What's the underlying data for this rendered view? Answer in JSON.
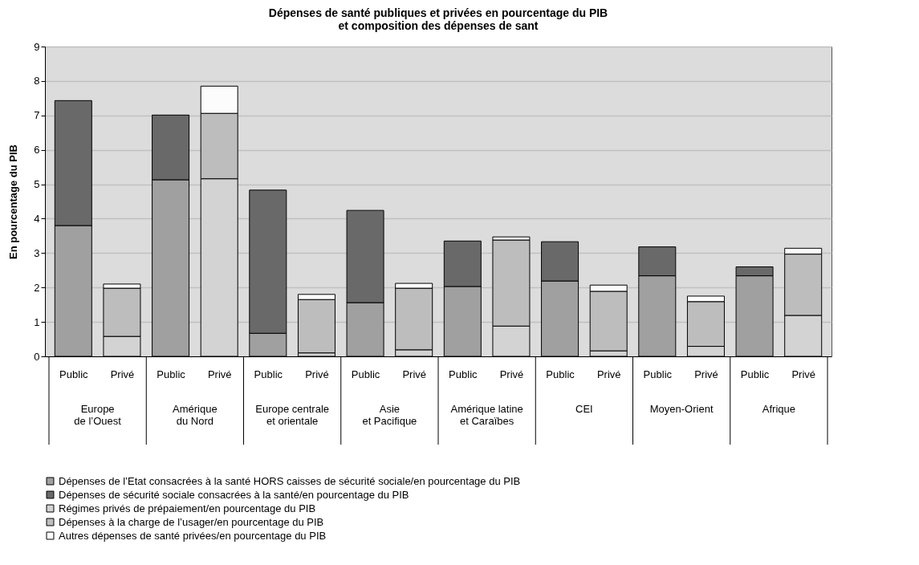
{
  "chart_data": {
    "type": "bar",
    "stacked": true,
    "title": "Dépenses de santé publiques et privées en pourcentage du PIB\net composition des dépenses de sant",
    "ylabel": "En pourcentage du PIB",
    "categories": [
      "Public",
      "Privé",
      "Public",
      "Privé",
      "Public",
      "Privé",
      "Public",
      "Privé",
      "Public",
      "Privé",
      "Public",
      "Privé",
      "Public",
      "Privé",
      "Public",
      "Privé"
    ],
    "annotations": [
      "Europe\nde l’Ouest",
      "Amérique\ndu Nord",
      "Europe centrale\net orientale",
      "Asie\net Pacifique",
      "Amérique latine\net Caraïbes",
      "CEI",
      "Moyen-Orient",
      "Afrique"
    ],
    "series": [
      {
        "name": "Dépenses de l’Etat consacrées à la santé HORS caisses de sécurité sociale/en pourcentage du PIB",
        "color": "#a0a0a0",
        "values": [
          3.8,
          null,
          5.13,
          null,
          0.67,
          null,
          1.56,
          null,
          2.03,
          null,
          2.19,
          null,
          2.34,
          null,
          2.34,
          null
        ]
      },
      {
        "name": "Dépenses de sécurité sociale consacrées à la santé/en pourcentage du PIB",
        "color": "#696969",
        "values": [
          3.63,
          null,
          1.88,
          null,
          4.16,
          null,
          2.68,
          null,
          1.32,
          null,
          1.14,
          null,
          0.84,
          null,
          0.26,
          null
        ]
      },
      {
        "name": "Régimes privés de prépaiement/en pourcentage du PIB",
        "color": "#d3d3d3",
        "values": [
          null,
          0.58,
          null,
          5.16,
          null,
          0.1,
          null,
          0.19,
          null,
          0.88,
          null,
          0.16,
          null,
          0.29,
          null,
          1.19
        ]
      },
      {
        "name": "Dépenses à la charge de l’usager/en pourcentage du PIB",
        "color": "#bdbdbd",
        "values": [
          null,
          1.4,
          null,
          1.9,
          null,
          1.55,
          null,
          1.79,
          null,
          2.5,
          null,
          1.73,
          null,
          1.3,
          null,
          1.78
        ]
      },
      {
        "name": "Autres dépenses de santé privées/en pourcentage du PIB",
        "color": "#fcfcfc",
        "values": [
          null,
          0.12,
          null,
          0.79,
          null,
          0.15,
          null,
          0.14,
          null,
          0.09,
          null,
          0.18,
          null,
          0.16,
          null,
          0.17
        ]
      }
    ],
    "ylim": [
      0,
      9
    ],
    "yticks": [
      0,
      1,
      2,
      3,
      4,
      5,
      6,
      7,
      8,
      9
    ],
    "grid": "y",
    "legend": "bottom"
  }
}
